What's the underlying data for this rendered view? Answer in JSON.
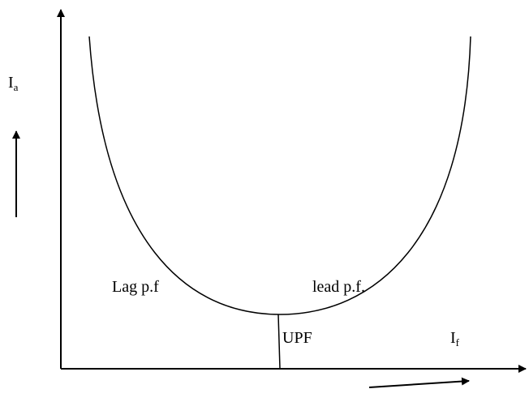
{
  "labels": {
    "y_axis": {
      "main": "I",
      "sub": "a"
    },
    "lag": "Lag p.f",
    "lead": "lead p.f.",
    "upf": "UPF",
    "x_axis": {
      "main": "I",
      "sub": "f"
    }
  }
}
